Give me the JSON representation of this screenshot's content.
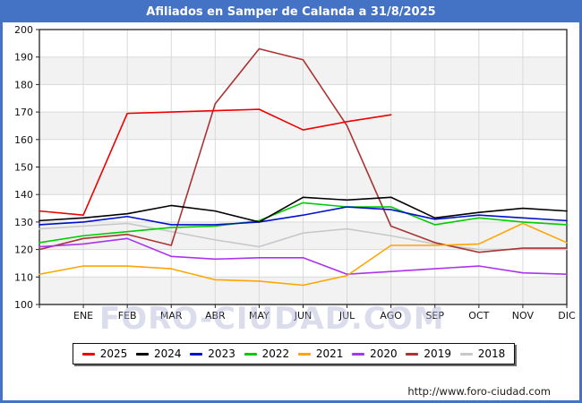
{
  "title": "Afiliados en Samper de Calanda a 31/8/2025",
  "watermark": "FORO-CIUDAD.COM",
  "footer": {
    "url": "http://www.foro-ciudad.com"
  },
  "colors": {
    "frame_and_titlebar": "#4472c4",
    "band_shade": "#f2f2f2",
    "gridline": "#d9d9d9",
    "plot_border": "#222222"
  },
  "chart_data": {
    "type": "line",
    "title": "Afiliados en Samper de Calanda a 31/8/2025",
    "xlabel": "",
    "ylabel": "",
    "ylim": [
      100,
      200
    ],
    "ytick_step": 10,
    "grid": true,
    "legend_position": "bottom",
    "categories": [
      "ENE",
      "FEB",
      "MAR",
      "ABR",
      "MAY",
      "JUN",
      "JUL",
      "AGO",
      "SEP",
      "OCT",
      "NOV",
      "DIC"
    ],
    "note": "First value of each series is the previous December, plotted at the left edge before ENE. 2025 series ends at AGO.",
    "series": [
      {
        "name": "2025",
        "color": "#ee0000",
        "values": [
          134,
          132.5,
          169.5,
          170,
          170.5,
          171,
          163.5,
          166.5,
          169
        ]
      },
      {
        "name": "2024",
        "color": "#000000",
        "values": [
          130.5,
          131.5,
          133,
          136,
          134,
          130,
          139,
          138,
          139,
          131.5,
          133.5,
          135,
          134
        ]
      },
      {
        "name": "2023",
        "color": "#0011cc",
        "values": [
          129,
          130,
          132,
          129,
          129,
          130,
          132.5,
          135.5,
          134.5,
          131,
          132.5,
          131.5,
          130.5
        ]
      },
      {
        "name": "2022",
        "color": "#00cc00",
        "values": [
          122.5,
          125,
          126.5,
          128,
          128.5,
          130.5,
          137,
          135.5,
          135.5,
          129,
          131.5,
          130,
          129
        ]
      },
      {
        "name": "2021",
        "color": "#ffa500",
        "values": [
          111,
          114,
          114,
          113,
          109,
          108.5,
          107,
          110.5,
          121.5,
          121.5,
          122,
          129.5,
          122.5
        ]
      },
      {
        "name": "2020",
        "color": "#aa33ee",
        "values": [
          121,
          122,
          124,
          117.5,
          116.5,
          117,
          117,
          111,
          112,
          113,
          114,
          111.5,
          111
        ]
      },
      {
        "name": "2019",
        "color": "#aa3333",
        "values": [
          120,
          124,
          125.5,
          121.5,
          173,
          193,
          189,
          165,
          128.5,
          122.5,
          119,
          120.5,
          120.5
        ]
      },
      {
        "name": "2018",
        "color": "#c8c8c8",
        "values": [
          127.5,
          128.5,
          129.5,
          126.5,
          123.5,
          121,
          126,
          127.5,
          125,
          122,
          120,
          120,
          120
        ]
      }
    ]
  }
}
